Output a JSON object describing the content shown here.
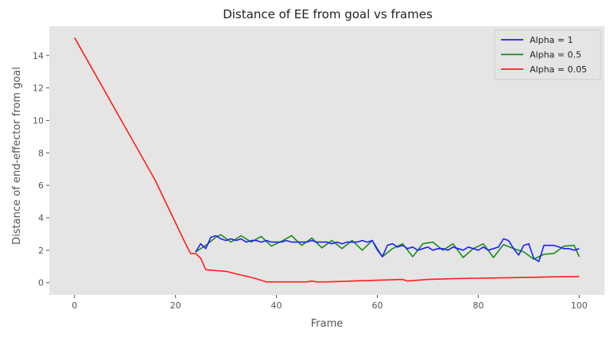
{
  "chart_data": {
    "type": "line",
    "title": "Distance of EE from goal vs frames",
    "xlabel": "Frame",
    "ylabel": "Distance of end-effector from goal",
    "xlim": [
      -5,
      105
    ],
    "ylim": [
      -0.75,
      15.8
    ],
    "xticks": [
      "0",
      "20",
      "40",
      "60",
      "80",
      "100"
    ],
    "yticks": [
      "0",
      "2",
      "4",
      "6",
      "8",
      "10",
      "12",
      "14"
    ],
    "grid": false,
    "background": "#e5e5e5",
    "legend_position": "top-right",
    "series": [
      {
        "name": "Alpha = 1",
        "color": "#1f1fff",
        "x": [
          24,
          25,
          26,
          27,
          28,
          29,
          30,
          31,
          32,
          33,
          34,
          35,
          36,
          37,
          38,
          39,
          40,
          41,
          42,
          43,
          44,
          45,
          46,
          47,
          48,
          49,
          50,
          51,
          52,
          53,
          54,
          55,
          56,
          57,
          58,
          59,
          60,
          61,
          62,
          63,
          64,
          65,
          66,
          67,
          68,
          69,
          70,
          71,
          72,
          73,
          74,
          75,
          76,
          77,
          78,
          79,
          80,
          81,
          82,
          83,
          84,
          85,
          86,
          87,
          88,
          89,
          90,
          91,
          92,
          93,
          94,
          95,
          96,
          97,
          98,
          99,
          100
        ],
        "y": [
          1.9,
          2.4,
          2.1,
          2.8,
          2.9,
          2.7,
          2.6,
          2.7,
          2.6,
          2.7,
          2.5,
          2.6,
          2.6,
          2.5,
          2.6,
          2.5,
          2.5,
          2.5,
          2.6,
          2.5,
          2.5,
          2.5,
          2.5,
          2.6,
          2.5,
          2.5,
          2.5,
          2.4,
          2.5,
          2.4,
          2.5,
          2.5,
          2.5,
          2.6,
          2.5,
          2.6,
          2.0,
          1.6,
          2.3,
          2.4,
          2.2,
          2.3,
          2.1,
          2.2,
          2.0,
          2.1,
          2.2,
          2.0,
          2.1,
          2.1,
          2.0,
          2.2,
          2.1,
          2.0,
          2.2,
          2.1,
          2.0,
          2.2,
          2.0,
          2.1,
          2.2,
          2.7,
          2.6,
          2.1,
          1.7,
          2.3,
          2.4,
          1.5,
          1.3,
          2.3,
          2.3,
          2.3,
          2.2,
          2.1,
          2.1,
          2.0,
          2.1
        ]
      },
      {
        "name": "Alpha = 0.5",
        "color": "#1a8c1a",
        "x": [
          24,
          26,
          28,
          29,
          31,
          33,
          35,
          37,
          39,
          41,
          43,
          45,
          47,
          49,
          51,
          53,
          55,
          57,
          59,
          61,
          63,
          65,
          67,
          69,
          71,
          73,
          75,
          77,
          79,
          81,
          83,
          85,
          87,
          89,
          91,
          93,
          95,
          97,
          99,
          100
        ],
        "y": [
          1.9,
          2.3,
          2.8,
          2.95,
          2.5,
          2.9,
          2.5,
          2.85,
          2.25,
          2.55,
          2.9,
          2.3,
          2.75,
          2.15,
          2.6,
          2.1,
          2.6,
          2.0,
          2.6,
          1.6,
          2.1,
          2.4,
          1.6,
          2.4,
          2.5,
          2.0,
          2.4,
          1.55,
          2.1,
          2.4,
          1.55,
          2.35,
          2.1,
          1.9,
          1.45,
          1.75,
          1.8,
          2.25,
          2.3,
          1.6
        ]
      },
      {
        "name": "Alpha = 0.05",
        "color": "#ff1f1f",
        "x": [
          0,
          2,
          4,
          6,
          8,
          10,
          12,
          14,
          16,
          18,
          20,
          22,
          23,
          24,
          25,
          26,
          28,
          30,
          32,
          34,
          36,
          38,
          40,
          42,
          44,
          46,
          47,
          48,
          50,
          55,
          60,
          65,
          66,
          70,
          75,
          80,
          85,
          90,
          95,
          100
        ],
        "y": [
          15.1,
          14.0,
          12.9,
          11.8,
          10.7,
          9.6,
          8.5,
          7.4,
          6.3,
          5.0,
          3.7,
          2.4,
          1.8,
          1.8,
          1.5,
          0.8,
          0.75,
          0.7,
          0.55,
          0.4,
          0.25,
          0.05,
          0.05,
          0.05,
          0.05,
          0.05,
          0.1,
          0.05,
          0.05,
          0.1,
          0.15,
          0.2,
          0.1,
          0.2,
          0.25,
          0.28,
          0.3,
          0.33,
          0.36,
          0.38
        ]
      }
    ]
  }
}
